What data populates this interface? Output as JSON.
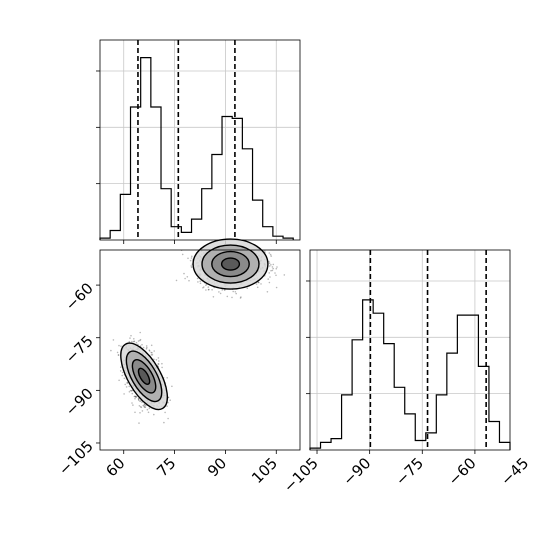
{
  "chart_data": {
    "type": "corner",
    "parameters": [
      {
        "range": [
          53,
          112
        ],
        "ticks": [
          60,
          75,
          90,
          105
        ],
        "tick_labels": [
          "60",
          "75",
          "90",
          "105"
        ],
        "quantiles": [
          64.2,
          76.1,
          92.8
        ],
        "histogram": {
          "edges": [
            53,
            56,
            59,
            62,
            65,
            68,
            71,
            74,
            77,
            80,
            83,
            86,
            89,
            92,
            95,
            98,
            101,
            104,
            107,
            110
          ],
          "counts": [
            0.01,
            0.05,
            0.24,
            0.7,
            0.96,
            0.7,
            0.27,
            0.07,
            0.04,
            0.11,
            0.27,
            0.45,
            0.65,
            0.64,
            0.48,
            0.21,
            0.07,
            0.02,
            0.01
          ]
        }
      },
      {
        "range": [
          -107,
          -50
        ],
        "ticks": [
          -105,
          -90,
          -75,
          -60,
          -45
        ],
        "tick_labels": [
          "−105",
          "−90",
          "−75",
          "−60",
          "−45"
        ],
        "quantiles": [
          -89.8,
          -73.5,
          -56.8
        ],
        "histogram": {
          "edges": [
            -107,
            -104,
            -101,
            -98,
            -95,
            -92,
            -89,
            -86,
            -83,
            -80,
            -77,
            -74,
            -71,
            -68,
            -65,
            -62,
            -59,
            -56,
            -53,
            -50
          ],
          "counts": [
            0.01,
            0.04,
            0.06,
            0.29,
            0.58,
            0.79,
            0.72,
            0.56,
            0.33,
            0.19,
            0.05,
            0.09,
            0.29,
            0.51,
            0.71,
            0.71,
            0.44,
            0.15,
            0.04
          ]
        }
      }
    ],
    "scatter_2d": {
      "clusters": [
        {
          "center": [
            66,
            -86
          ],
          "sd": [
            2.6,
            4.0
          ],
          "correlation": -0.45
        },
        {
          "center": [
            91.5,
            -54
          ],
          "sd": [
            4.8,
            3.1
          ],
          "correlation": 0.0
        }
      ],
      "contour_levels": 4
    },
    "grid": true,
    "title": "",
    "xlabel": "",
    "ylabel": ""
  }
}
